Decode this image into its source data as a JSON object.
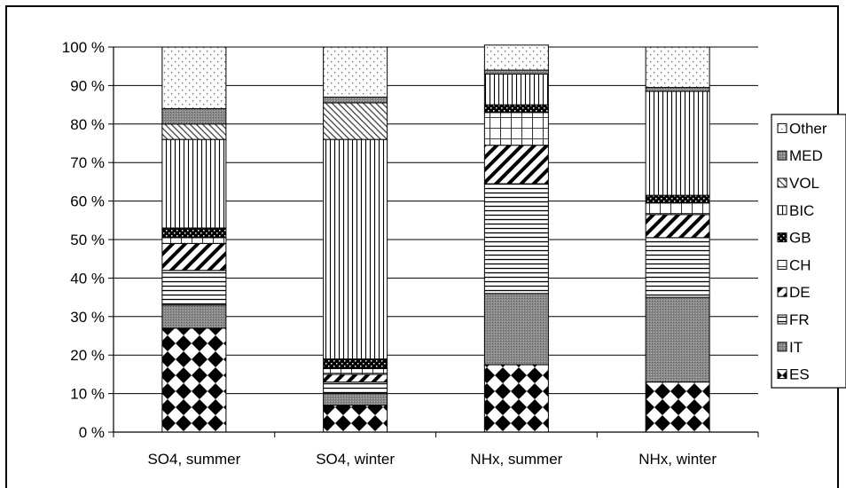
{
  "chart_data": {
    "type": "bar",
    "stacked": true,
    "percent": true,
    "categories": [
      "SO4, summer",
      "SO4, winter",
      "NHx, summer",
      "NHx, winter"
    ],
    "y_ticks": [
      "0 %",
      "10 %",
      "20 %",
      "30 %",
      "40 %",
      "50 %",
      "60 %",
      "70 %",
      "80 %",
      "90 %",
      "100 %"
    ],
    "ylim": [
      0,
      100
    ],
    "grid": true,
    "legend_position": "right",
    "series": [
      {
        "name": "ES",
        "pattern": "diamond",
        "values": [
          27,
          7,
          17.5,
          13
        ]
      },
      {
        "name": "IT",
        "pattern": "dense",
        "values": [
          6,
          3,
          18.5,
          22
        ]
      },
      {
        "name": "FR",
        "pattern": "hlines",
        "values": [
          9,
          3,
          28.5,
          15.5
        ]
      },
      {
        "name": "DE",
        "pattern": "diag",
        "values": [
          7,
          2,
          10,
          6
        ]
      },
      {
        "name": "CH",
        "pattern": "grid",
        "values": [
          1.5,
          1.5,
          8.5,
          3
        ]
      },
      {
        "name": "GB",
        "pattern": "dots",
        "values": [
          2.5,
          2.5,
          2,
          2
        ]
      },
      {
        "name": "BIC",
        "pattern": "vlines",
        "values": [
          23,
          57,
          8,
          27
        ]
      },
      {
        "name": "VOL",
        "pattern": "diag2",
        "values": [
          4,
          9.5,
          0,
          0
        ]
      },
      {
        "name": "MED",
        "pattern": "dense",
        "values": [
          4,
          1.5,
          1,
          1
        ]
      },
      {
        "name": "Other",
        "pattern": "sparse",
        "values": [
          16,
          13,
          6.5,
          10.5
        ]
      }
    ]
  }
}
